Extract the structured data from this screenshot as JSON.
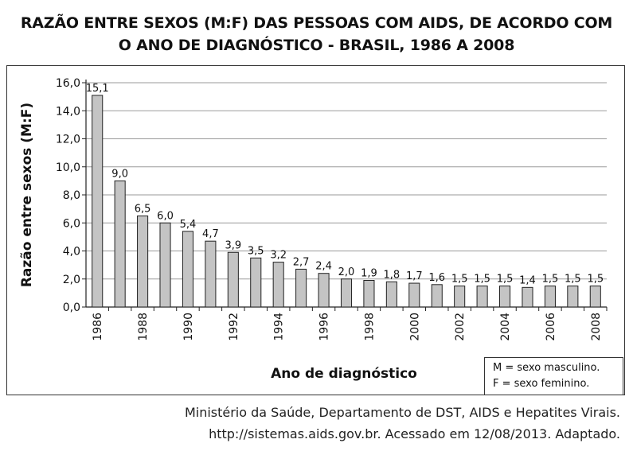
{
  "title_line1": "RAZÃO ENTRE SEXOS (M:F) DAS PESSOAS COM AIDS, DE ACORDO COM",
  "title_line2": "O ANO DE DIAGNÓSTICO - BRASIL, 1986 A 2008",
  "legend": {
    "line1": "M = sexo masculino.",
    "line2": "F  = sexo feminino."
  },
  "source": {
    "line1": "Ministério da Saúde, Departamento de DST, AIDS e Hepatites Virais.",
    "line2": "http://sistemas.aids.gov.br. Acessado em 12/08/2013. Adaptado."
  },
  "chart_data": {
    "type": "bar",
    "title": "RAZÃO ENTRE SEXOS (M:F) DAS PESSOAS COM AIDS, DE ACORDO COM O ANO DE DIAGNÓSTICO - BRASIL, 1986 A 2008",
    "xlabel": "Ano de diagnóstico",
    "ylabel": "Razão entre sexos (M:F)",
    "ylim": [
      0,
      16
    ],
    "yticks": [
      "0,0",
      "2,0",
      "4,0",
      "6,0",
      "8,0",
      "10,0",
      "12,0",
      "14,0",
      "16,0"
    ],
    "grid": true,
    "categories": [
      "1986",
      "1987",
      "1988",
      "1989",
      "1990",
      "1991",
      "1992",
      "1993",
      "1994",
      "1995",
      "1996",
      "1997",
      "1998",
      "1999",
      "2000",
      "2001",
      "2002",
      "2003",
      "2004",
      "2005",
      "2006",
      "2007",
      "2008"
    ],
    "xtick_labels": [
      "1986",
      "",
      "1988",
      "",
      "1990",
      "",
      "1992",
      "",
      "1994",
      "",
      "1996",
      "",
      "1998",
      "",
      "2000",
      "",
      "2002",
      "",
      "2004",
      "",
      "2006",
      "",
      "2008"
    ],
    "values": [
      15.1,
      9.0,
      6.5,
      6.0,
      5.4,
      4.7,
      3.9,
      3.5,
      3.2,
      2.7,
      2.4,
      2.0,
      1.9,
      1.8,
      1.7,
      1.6,
      1.5,
      1.5,
      1.5,
      1.4,
      1.5,
      1.5,
      1.5
    ],
    "data_labels": [
      "15,1",
      "9,0",
      "6,5",
      "6,0",
      "5,4",
      "4,7",
      "3,9",
      "3,5",
      "3,2",
      "2,7",
      "2,4",
      "2,0",
      "1,9",
      "1,8",
      "1,7",
      "1,6",
      "1,5",
      "1,5",
      "1,5",
      "1,4",
      "1,5",
      "1,5",
      "1,5"
    ],
    "bar_color": "#c4c4c4",
    "bar_stroke": "#222222",
    "grid_color": "#9a9a9a"
  }
}
